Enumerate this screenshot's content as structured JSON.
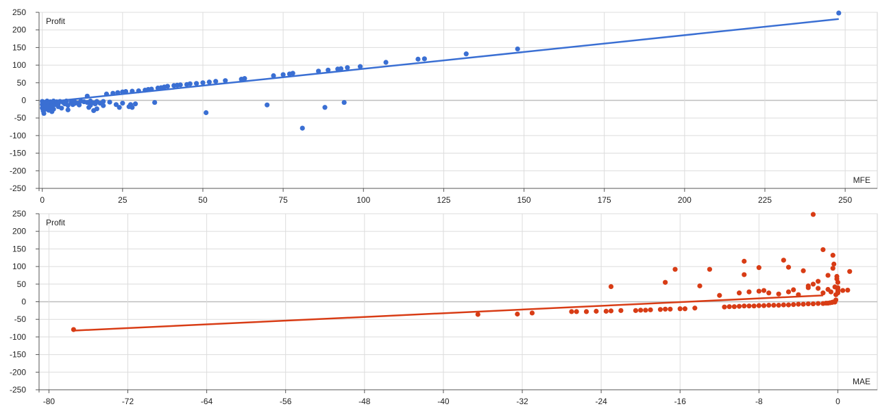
{
  "chart_data": [
    {
      "type": "scatter",
      "title": "",
      "xlabel": "MFE",
      "ylabel": "Profit",
      "xlim": [
        -1,
        260
      ],
      "ylim": [
        -250,
        250
      ],
      "xticks": [
        0,
        25,
        50,
        75,
        100,
        125,
        150,
        175,
        200,
        225,
        250
      ],
      "yticks": [
        250,
        200,
        150,
        100,
        50,
        0,
        -50,
        -100,
        -150,
        -200,
        -250
      ],
      "grid": true,
      "legend": "none",
      "color": "#3a6fd3",
      "trendline": {
        "from": [
          0,
          -6
        ],
        "to": [
          248,
          231
        ]
      },
      "points": [
        [
          0,
          -3
        ],
        [
          0,
          -12
        ],
        [
          0,
          -22
        ],
        [
          0.3,
          -30
        ],
        [
          0.5,
          -37
        ],
        [
          0.5,
          -5
        ],
        [
          1,
          -8
        ],
        [
          1,
          -15
        ],
        [
          1,
          -25
        ],
        [
          1.5,
          -2
        ],
        [
          1.5,
          -18
        ],
        [
          2,
          -10
        ],
        [
          2,
          -28
        ],
        [
          2.5,
          -4
        ],
        [
          2.5,
          -20
        ],
        [
          3,
          -6
        ],
        [
          3,
          -15
        ],
        [
          3,
          -32
        ],
        [
          3.5,
          -2
        ],
        [
          3.5,
          -25
        ],
        [
          4,
          -8
        ],
        [
          4,
          -12
        ],
        [
          4.5,
          -4
        ],
        [
          5,
          -9
        ],
        [
          5,
          -18
        ],
        [
          5.5,
          -3
        ],
        [
          6,
          -22
        ],
        [
          6.5,
          -6
        ],
        [
          7,
          -10
        ],
        [
          7.5,
          -2
        ],
        [
          8,
          -14
        ],
        [
          8,
          -27
        ],
        [
          9,
          -5
        ],
        [
          9.5,
          -12
        ],
        [
          10,
          -3
        ],
        [
          10,
          -9
        ],
        [
          11,
          -8
        ],
        [
          11.5,
          -13
        ],
        [
          12,
          -2
        ],
        [
          13,
          -4
        ],
        [
          14,
          12
        ],
        [
          14,
          -6
        ],
        [
          14.5,
          -20
        ],
        [
          15,
          -14
        ],
        [
          15,
          -2
        ],
        [
          16,
          -7
        ],
        [
          16,
          -29
        ],
        [
          16.5,
          -10
        ],
        [
          17,
          -3
        ],
        [
          17,
          -24
        ],
        [
          18,
          -8
        ],
        [
          19,
          -15
        ],
        [
          19,
          -3
        ],
        [
          20,
          18
        ],
        [
          21,
          -5
        ],
        [
          22,
          20
        ],
        [
          23,
          -12
        ],
        [
          23.5,
          22
        ],
        [
          24,
          -20
        ],
        [
          25,
          -8
        ],
        [
          25,
          24
        ],
        [
          26,
          25
        ],
        [
          27,
          -18
        ],
        [
          27.5,
          -12
        ],
        [
          28,
          26
        ],
        [
          28,
          -20
        ],
        [
          29,
          -10
        ],
        [
          30,
          27
        ],
        [
          32,
          29
        ],
        [
          33,
          31
        ],
        [
          34,
          32
        ],
        [
          35,
          -6
        ],
        [
          36,
          35
        ],
        [
          37,
          36
        ],
        [
          38,
          38
        ],
        [
          39,
          40
        ],
        [
          41,
          42
        ],
        [
          42,
          43
        ],
        [
          43,
          44
        ],
        [
          45,
          45
        ],
        [
          46,
          47
        ],
        [
          48,
          48
        ],
        [
          50,
          50
        ],
        [
          51,
          -35
        ],
        [
          52,
          52
        ],
        [
          54,
          54
        ],
        [
          57,
          56
        ],
        [
          62,
          60
        ],
        [
          63,
          62
        ],
        [
          70,
          -13
        ],
        [
          72,
          70
        ],
        [
          75,
          73
        ],
        [
          77,
          75
        ],
        [
          78,
          77
        ],
        [
          81,
          -79
        ],
        [
          86,
          83
        ],
        [
          88,
          -20
        ],
        [
          89,
          86
        ],
        [
          92,
          89
        ],
        [
          93,
          90
        ],
        [
          94,
          -6
        ],
        [
          95,
          93
        ],
        [
          99,
          96
        ],
        [
          107,
          108
        ],
        [
          117,
          117
        ],
        [
          119,
          118
        ],
        [
          132,
          132
        ],
        [
          148,
          146
        ],
        [
          248,
          248
        ]
      ]
    },
    {
      "type": "scatter",
      "title": "",
      "xlabel": "MAE",
      "ylabel": "Profit",
      "xlim": [
        -81,
        4
      ],
      "ylim": [
        -250,
        250
      ],
      "xticks": [
        -80,
        -72,
        -64,
        -56,
        -48,
        -40,
        -32,
        -24,
        -16,
        -8,
        0
      ],
      "yticks": [
        250,
        200,
        150,
        100,
        50,
        0,
        -50,
        -100,
        -150,
        -200,
        -250
      ],
      "grid": true,
      "legend": "none",
      "color": "#d83c15",
      "trendline": {
        "from": [
          -77.5,
          -82
        ],
        "to": [
          -1.5,
          18
        ]
      },
      "points": [
        [
          -77.5,
          -79
        ],
        [
          -36.5,
          -36
        ],
        [
          -32.5,
          -35
        ],
        [
          -31,
          -32
        ],
        [
          -27,
          -28
        ],
        [
          -26.5,
          -28
        ],
        [
          -25.5,
          -28
        ],
        [
          -24.5,
          -27
        ],
        [
          -23.5,
          -27
        ],
        [
          -23,
          -26
        ],
        [
          -23,
          43
        ],
        [
          -22,
          -25
        ],
        [
          -20.5,
          -25
        ],
        [
          -20,
          -24
        ],
        [
          -19.5,
          -24
        ],
        [
          -19,
          -23
        ],
        [
          -18,
          -22
        ],
        [
          -17.5,
          -21
        ],
        [
          -17.5,
          55
        ],
        [
          -17,
          -21
        ],
        [
          -16.5,
          92
        ],
        [
          -16,
          -20
        ],
        [
          -15.5,
          -20
        ],
        [
          -14.5,
          -18
        ],
        [
          -14,
          45
        ],
        [
          -13,
          92
        ],
        [
          -12,
          18
        ],
        [
          -11.5,
          -15
        ],
        [
          -11,
          -14
        ],
        [
          -10.5,
          -14
        ],
        [
          -10,
          -13
        ],
        [
          -10,
          25
        ],
        [
          -9.5,
          -12
        ],
        [
          -9.5,
          115
        ],
        [
          -9.5,
          77
        ],
        [
          -9,
          -12
        ],
        [
          -9,
          28
        ],
        [
          -8.5,
          -12
        ],
        [
          -8,
          -11
        ],
        [
          -8,
          97
        ],
        [
          -8,
          30
        ],
        [
          -7.5,
          -11
        ],
        [
          -7.5,
          32
        ],
        [
          -7,
          -10
        ],
        [
          -7,
          25
        ],
        [
          -6.5,
          -10
        ],
        [
          -6,
          -10
        ],
        [
          -6,
          22
        ],
        [
          -5.5,
          -9
        ],
        [
          -5.5,
          118
        ],
        [
          -5,
          -9
        ],
        [
          -5,
          98
        ],
        [
          -5,
          28
        ],
        [
          -4.5,
          -8
        ],
        [
          -4.5,
          34
        ],
        [
          -4,
          -7
        ],
        [
          -4,
          20
        ],
        [
          -3.5,
          -7
        ],
        [
          -3.5,
          88
        ],
        [
          -3,
          -6
        ],
        [
          -3,
          40
        ],
        [
          -3,
          45
        ],
        [
          -2.5,
          -6
        ],
        [
          -2.5,
          50
        ],
        [
          -2.5,
          248
        ],
        [
          -2,
          -5
        ],
        [
          -2,
          38
        ],
        [
          -2,
          58
        ],
        [
          -1.5,
          -5
        ],
        [
          -1.5,
          25
        ],
        [
          -1.5,
          148
        ],
        [
          -1.2,
          -4
        ],
        [
          -1,
          -4
        ],
        [
          -1,
          75
        ],
        [
          -1,
          35
        ],
        [
          -0.8,
          -3
        ],
        [
          -0.7,
          28
        ],
        [
          -0.6,
          -2
        ],
        [
          -0.5,
          95
        ],
        [
          -0.5,
          -1
        ],
        [
          -0.5,
          132
        ],
        [
          -0.4,
          107
        ],
        [
          -0.3,
          -1
        ],
        [
          -0.3,
          42
        ],
        [
          -0.2,
          20
        ],
        [
          -0.2,
          5
        ],
        [
          -0.1,
          72
        ],
        [
          -0.1,
          65
        ],
        [
          0,
          55
        ],
        [
          0,
          40
        ],
        [
          0,
          30
        ],
        [
          0,
          35
        ],
        [
          0,
          25
        ],
        [
          0.5,
          32
        ],
        [
          1,
          33
        ],
        [
          1.2,
          86
        ]
      ]
    }
  ]
}
